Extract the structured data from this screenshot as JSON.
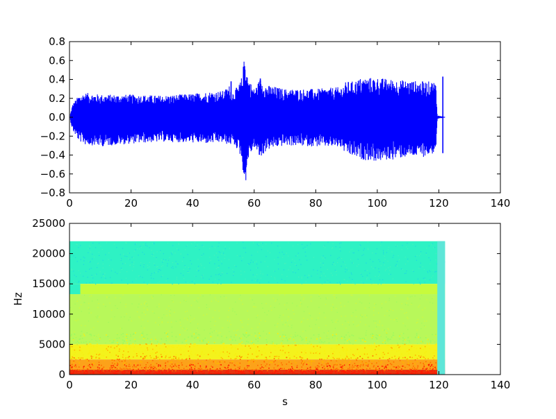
{
  "chart_data": [
    {
      "type": "line",
      "title": "",
      "xlabel": "",
      "ylabel": "",
      "xlim": [
        0,
        140
      ],
      "ylim": [
        -0.8,
        0.8
      ],
      "xticks": [
        "0",
        "20",
        "40",
        "60",
        "80",
        "100",
        "120",
        "140"
      ],
      "yticks": [
        "0.8",
        "0.6",
        "0.4",
        "0.2",
        "0.0",
        "−0.2",
        "−0.4",
        "−0.6",
        "−0.8"
      ],
      "series_color": "#0000ff",
      "envelope": {
        "x": [
          0.3,
          1,
          3,
          5,
          8,
          10,
          20,
          30,
          40,
          45,
          50,
          52,
          53,
          55,
          56,
          57,
          58,
          60,
          62,
          64,
          66,
          70,
          80,
          88,
          90,
          92,
          95,
          100,
          105,
          110,
          115,
          119,
          119.5,
          121,
          122
        ],
        "upper": [
          0.04,
          0.14,
          0.23,
          0.26,
          0.25,
          0.24,
          0.24,
          0.23,
          0.25,
          0.27,
          0.28,
          0.34,
          0.27,
          0.34,
          0.43,
          0.68,
          0.42,
          0.3,
          0.41,
          0.34,
          0.33,
          0.3,
          0.3,
          0.32,
          0.38,
          0.38,
          0.42,
          0.42,
          0.4,
          0.39,
          0.38,
          0.38,
          0.02,
          0.01,
          0.0
        ],
        "lower": [
          -0.04,
          -0.14,
          -0.25,
          -0.29,
          -0.3,
          -0.31,
          -0.28,
          -0.26,
          -0.27,
          -0.28,
          -0.27,
          -0.3,
          -0.28,
          -0.36,
          -0.46,
          -0.77,
          -0.45,
          -0.32,
          -0.45,
          -0.35,
          -0.33,
          -0.3,
          -0.31,
          -0.32,
          -0.4,
          -0.42,
          -0.45,
          -0.47,
          -0.45,
          -0.42,
          -0.42,
          -0.38,
          -0.02,
          -0.01,
          0.0
        ]
      },
      "spikes": [
        {
          "x": 52.5,
          "y": 0.38
        },
        {
          "x": 62.0,
          "y": 0.41
        },
        {
          "x": 121.3,
          "y": 0.43
        },
        {
          "x": 121.3,
          "y": -0.38
        }
      ]
    },
    {
      "type": "heatmap",
      "title": "",
      "xlabel": "s",
      "ylabel": "Hz",
      "xlim": [
        0,
        140
      ],
      "ylim": [
        0,
        25000
      ],
      "xticks": [
        "0",
        "20",
        "40",
        "60",
        "80",
        "100",
        "120",
        "140"
      ],
      "yticks": [
        "25000",
        "20000",
        "15000",
        "10000",
        "5000",
        "0"
      ],
      "data_extent_x": [
        0,
        122
      ],
      "data_extent_y": [
        0,
        22050
      ],
      "colormap": "jet",
      "bands": [
        {
          "from_hz": 15000,
          "to_hz": 22050,
          "color": "#2ef2c4"
        },
        {
          "from_hz": 13300,
          "to_hz": 15000,
          "color": "#c7fb3c"
        },
        {
          "from_hz": 5000,
          "to_hz": 13300,
          "color": "#b8f85a"
        },
        {
          "from_hz": 2500,
          "to_hz": 5000,
          "color": "#f4f21c"
        },
        {
          "from_hz": 800,
          "to_hz": 2500,
          "color": "#fca21a"
        },
        {
          "from_hz": 0,
          "to_hz": 800,
          "color": "#e8320e"
        }
      ],
      "notch_x_range": [
        0,
        3.5
      ],
      "notch_hz_range": [
        13300,
        15000
      ],
      "notch_color": "#2ef2c4",
      "tail_x_range": [
        119.5,
        122
      ],
      "tail_color": "#5ee6d8"
    }
  ]
}
